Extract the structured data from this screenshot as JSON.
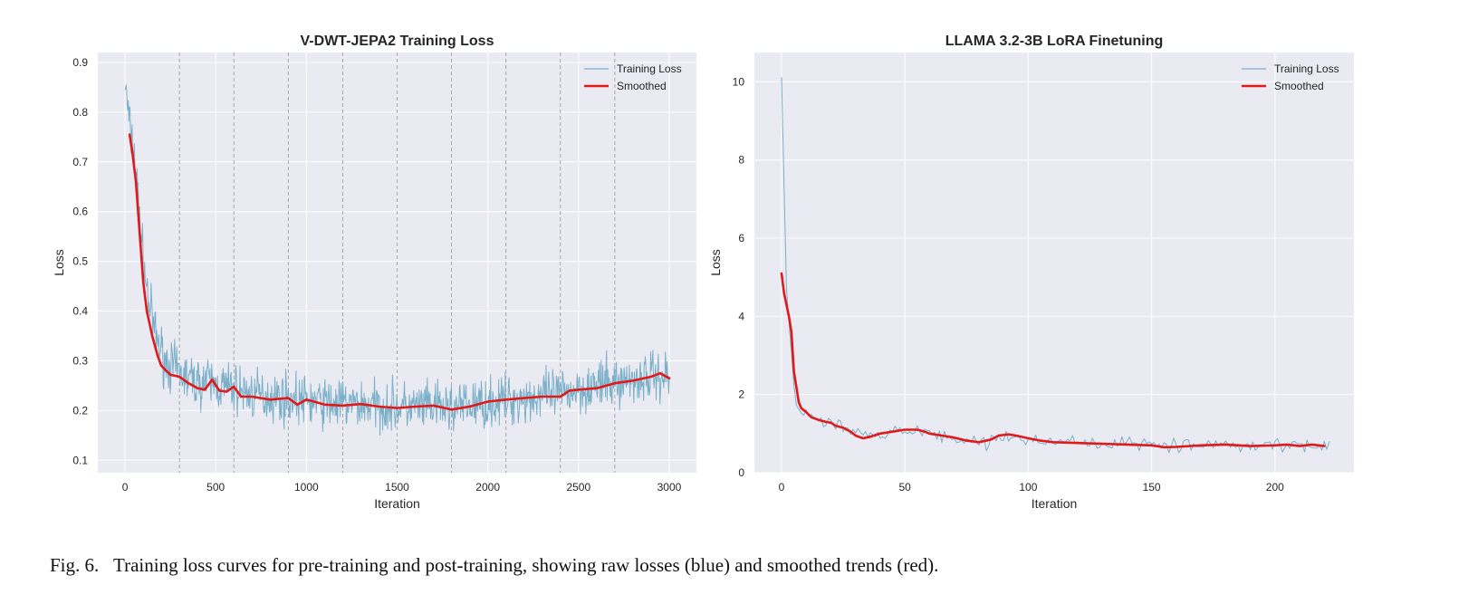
{
  "caption": {
    "label": "Fig. 6.",
    "text": "Training loss curves for pre-training and post-training, showing raw losses (blue) and smoothed trends (red)."
  },
  "colors": {
    "raw": "#7bb0c9",
    "smoothed": "#e01a1a",
    "background": "#eaeaf2",
    "grid": "#ffffff",
    "vline": "#a0a0a0"
  },
  "chart_data": [
    {
      "type": "line",
      "title": "V-DWT-JEPA2 Training Loss",
      "xlabel": "Iteration",
      "ylabel": "Loss",
      "xlim": [
        -150,
        3150
      ],
      "ylim": [
        0.075,
        0.92
      ],
      "xticks": [
        0,
        500,
        1000,
        1500,
        2000,
        2500,
        3000
      ],
      "yticks": [
        0.1,
        0.2,
        0.3,
        0.4,
        0.5,
        0.6,
        0.7,
        0.8,
        0.9
      ],
      "grid": true,
      "legend": "top-right",
      "vlines": [
        300,
        600,
        900,
        1200,
        1500,
        1800,
        2100,
        2400,
        2700
      ],
      "series": [
        {
          "name": "Training Loss",
          "style": "raw",
          "noise": 0.035,
          "seed": 7,
          "x_range": [
            0,
            3000
          ],
          "points": 1000,
          "trend": [
            [
              0,
              0.86
            ],
            [
              25,
              0.77
            ],
            [
              50,
              0.72
            ],
            [
              80,
              0.6
            ],
            [
              100,
              0.5
            ],
            [
              130,
              0.42
            ],
            [
              170,
              0.35
            ],
            [
              220,
              0.3
            ],
            [
              300,
              0.275
            ],
            [
              400,
              0.255
            ],
            [
              450,
              0.26
            ],
            [
              500,
              0.25
            ],
            [
              600,
              0.245
            ],
            [
              700,
              0.232
            ],
            [
              900,
              0.225
            ],
            [
              1100,
              0.215
            ],
            [
              1300,
              0.212
            ],
            [
              1500,
              0.207
            ],
            [
              1800,
              0.205
            ],
            [
              2000,
              0.215
            ],
            [
              2200,
              0.225
            ],
            [
              2400,
              0.232
            ],
            [
              2500,
              0.245
            ],
            [
              2700,
              0.255
            ],
            [
              2900,
              0.27
            ],
            [
              3000,
              0.27
            ]
          ]
        },
        {
          "name": "Smoothed",
          "style": "smoothed",
          "x": [
            25,
            40,
            60,
            80,
            100,
            120,
            150,
            180,
            200,
            250,
            300,
            350,
            400,
            440,
            480,
            520,
            560,
            600,
            640,
            700,
            800,
            900,
            950,
            1000,
            1100,
            1200,
            1300,
            1400,
            1500,
            1600,
            1700,
            1800,
            1900,
            2000,
            2100,
            2200,
            2300,
            2400,
            2450,
            2500,
            2600,
            2700,
            2800,
            2900,
            2950,
            3000
          ],
          "values": [
            0.755,
            0.72,
            0.66,
            0.56,
            0.46,
            0.4,
            0.35,
            0.31,
            0.29,
            0.272,
            0.268,
            0.255,
            0.245,
            0.242,
            0.262,
            0.24,
            0.238,
            0.248,
            0.228,
            0.228,
            0.222,
            0.225,
            0.212,
            0.222,
            0.212,
            0.21,
            0.213,
            0.208,
            0.205,
            0.208,
            0.21,
            0.202,
            0.208,
            0.218,
            0.222,
            0.225,
            0.228,
            0.228,
            0.24,
            0.242,
            0.245,
            0.255,
            0.26,
            0.268,
            0.275,
            0.265
          ]
        }
      ]
    },
    {
      "type": "line",
      "title": "LLAMA 3.2-3B LoRA Finetuning",
      "xlabel": "Iteration",
      "ylabel": "Loss",
      "xlim": [
        -11,
        232
      ],
      "ylim": [
        0,
        10.75
      ],
      "xticks": [
        0,
        50,
        100,
        150,
        200
      ],
      "yticks": [
        0,
        2,
        4,
        6,
        8,
        10
      ],
      "grid": true,
      "legend": "top-right",
      "vlines": [],
      "series": [
        {
          "name": "Training Loss",
          "style": "raw",
          "noise": 0.12,
          "seed": 13,
          "x_range": [
            0,
            222
          ],
          "points": 223,
          "trend": [
            [
              0,
              10.1
            ],
            [
              1,
              7.2
            ],
            [
              2,
              4.6
            ],
            [
              3,
              3.8
            ],
            [
              4,
              3.0
            ],
            [
              5,
              2.2
            ],
            [
              6,
              1.6
            ],
            [
              8,
              1.6
            ],
            [
              10,
              1.5
            ],
            [
              15,
              1.3
            ],
            [
              20,
              1.25
            ],
            [
              25,
              1.15
            ],
            [
              30,
              1.0
            ],
            [
              35,
              0.95
            ],
            [
              40,
              1.0
            ],
            [
              50,
              1.1
            ],
            [
              55,
              1.1
            ],
            [
              60,
              1.0
            ],
            [
              70,
              0.85
            ],
            [
              80,
              0.75
            ],
            [
              90,
              0.95
            ],
            [
              100,
              0.85
            ],
            [
              110,
              0.8
            ],
            [
              120,
              0.78
            ],
            [
              130,
              0.75
            ],
            [
              140,
              0.75
            ],
            [
              150,
              0.7
            ],
            [
              160,
              0.68
            ],
            [
              170,
              0.7
            ],
            [
              180,
              0.72
            ],
            [
              190,
              0.7
            ],
            [
              200,
              0.7
            ],
            [
              210,
              0.72
            ],
            [
              222,
              0.7
            ]
          ]
        },
        {
          "name": "Smoothed",
          "style": "smoothed",
          "x": [
            0,
            1,
            2,
            3,
            4,
            5,
            6,
            7,
            8,
            10,
            12,
            15,
            18,
            20,
            22,
            25,
            28,
            30,
            33,
            36,
            40,
            45,
            50,
            55,
            58,
            60,
            65,
            70,
            75,
            80,
            85,
            88,
            92,
            95,
            100,
            105,
            110,
            120,
            130,
            140,
            150,
            155,
            160,
            170,
            180,
            190,
            200,
            205,
            210,
            215,
            220
          ],
          "values": [
            5.1,
            4.6,
            4.3,
            4.0,
            3.6,
            2.6,
            2.2,
            1.8,
            1.65,
            1.55,
            1.42,
            1.35,
            1.3,
            1.28,
            1.2,
            1.15,
            1.05,
            0.95,
            0.88,
            0.92,
            1.0,
            1.05,
            1.1,
            1.1,
            1.05,
            1.0,
            0.95,
            0.9,
            0.82,
            0.78,
            0.85,
            0.95,
            0.98,
            0.95,
            0.88,
            0.82,
            0.78,
            0.76,
            0.74,
            0.72,
            0.7,
            0.65,
            0.66,
            0.7,
            0.72,
            0.68,
            0.7,
            0.72,
            0.68,
            0.72,
            0.68
          ]
        }
      ]
    }
  ]
}
